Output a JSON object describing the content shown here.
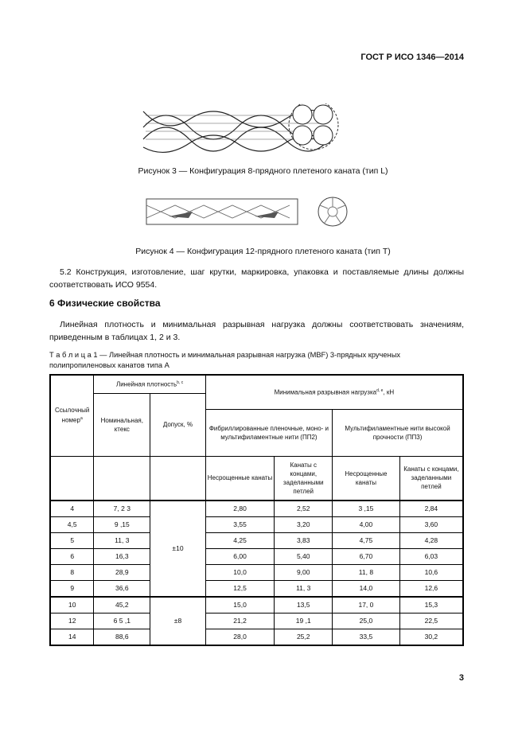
{
  "header": {
    "doc_id": "ГОСТ Р ИСО 1346—2014"
  },
  "figures": [
    {
      "caption": "Рисунок 3 — Конфигурация 8-прядного плетеного каната (тип L)"
    },
    {
      "caption": "Рисунок 4 — Конфигурация 12-прядного плетеного каната (тип Т)"
    }
  ],
  "para_5_2": "5.2 Конструкция, изготовление, шаг крутки, маркировка, упаковка и поставляемые длины должны соответствовать ИСО 9554.",
  "section_6": {
    "title": "6 Физические свойства",
    "text": "Линейная плотность и минимальная разрывная нагрузка должны соответствовать значениям, приведенным в таблицах 1, 2 и 3."
  },
  "table1": {
    "caption": "Т а б л и ц а  1 — Линейная плотность и минимальная разрывная нагрузка (MBF) 3-прядных крученых полипропиленовых канатов типа А",
    "headers": {
      "ref": "Ссылочный номер",
      "ref_sup": "a",
      "lin": "Линейная плотность",
      "lin_sup": "b, c",
      "nom": "Номинальная, ктекс",
      "tol": "Допуск, %",
      "mbf": "Минимальная разрывная нагрузка",
      "mbf_sup": "d, e",
      "mbf_unit": ", кН",
      "pp2": "Фибриллированные пленочные, моно- и мультифиламентные нити (ПП2)",
      "pp3": "Мультифиламентные нити высокой прочности (ПП3)",
      "unspliced": "Несрощенные канаты",
      "spliced": "Канаты с концами, заделанными петлей"
    },
    "tolerances": [
      "±10",
      "±8"
    ],
    "rows": [
      [
        "4",
        "7, 2 3",
        "2,80",
        "2,52",
        "3 ,15",
        "2,84"
      ],
      [
        "4,5",
        "9 ,15",
        "3,55",
        "3,20",
        "4,00",
        "3,60"
      ],
      [
        "5",
        "11, 3",
        "4,25",
        "3,83",
        "4,75",
        "4,28"
      ],
      [
        "6",
        "16,3",
        "6,00",
        "5,40",
        "6,70",
        "6,03"
      ],
      [
        "8",
        "28,9",
        "10,0",
        "9,00",
        "11, 8",
        "10,6"
      ],
      [
        "9",
        "36,6",
        "12,5",
        "11, 3",
        "14,0",
        "12,6"
      ],
      [
        "10",
        "45,2",
        "15,0",
        "13,5",
        "17, 0",
        "15,3"
      ],
      [
        "12",
        "6 5 ,1",
        "21,2",
        "19 ,1",
        "25,0",
        "22,5"
      ],
      [
        "14",
        "88,6",
        "28,0",
        "25,2",
        "33,5",
        "30,2"
      ]
    ]
  },
  "page_number": "3"
}
